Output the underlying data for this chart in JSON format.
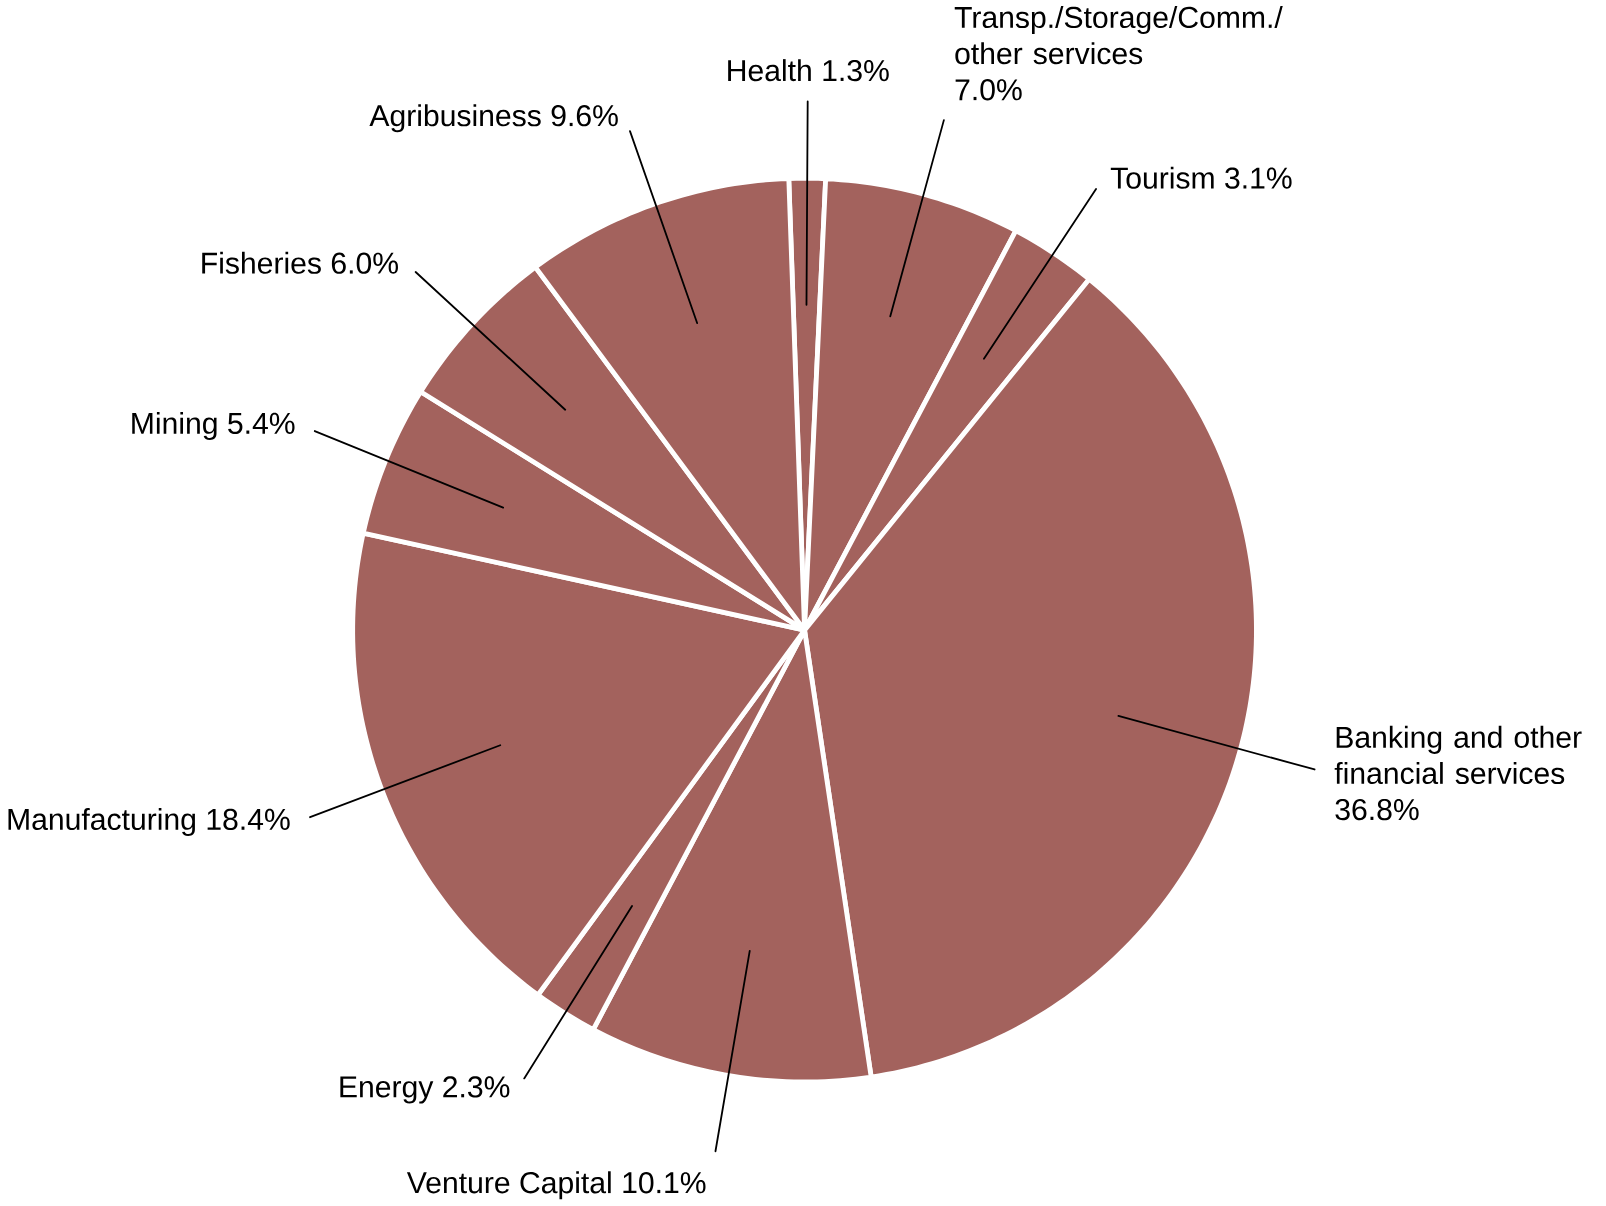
{
  "chart_data": {
    "type": "pie",
    "categories": [
      "Health",
      "Transp./Storage/Comm./ other services",
      "Tourism",
      "Banking and other financial services",
      "Venture Capital",
      "Energy",
      "Manufacturing",
      "Mining",
      "Fisheries",
      "Agribusiness"
    ],
    "values": [
      1.3,
      7.0,
      3.1,
      36.8,
      10.1,
      2.3,
      18.4,
      5.4,
      6.0,
      9.6
    ],
    "value_labels": [
      "1.3%",
      "7.0%",
      "3.1%",
      "36.8%",
      "10.1%",
      "2.3%",
      "18.4%",
      "5.4%",
      "6.0%",
      "9.6%"
    ],
    "colors": [
      "#a3625d",
      "#a3625d",
      "#a3625d",
      "#a3625d",
      "#a3625d",
      "#a3625d",
      "#a3625d",
      "#a3625d",
      "#a3625d",
      "#a3625d"
    ]
  }
}
